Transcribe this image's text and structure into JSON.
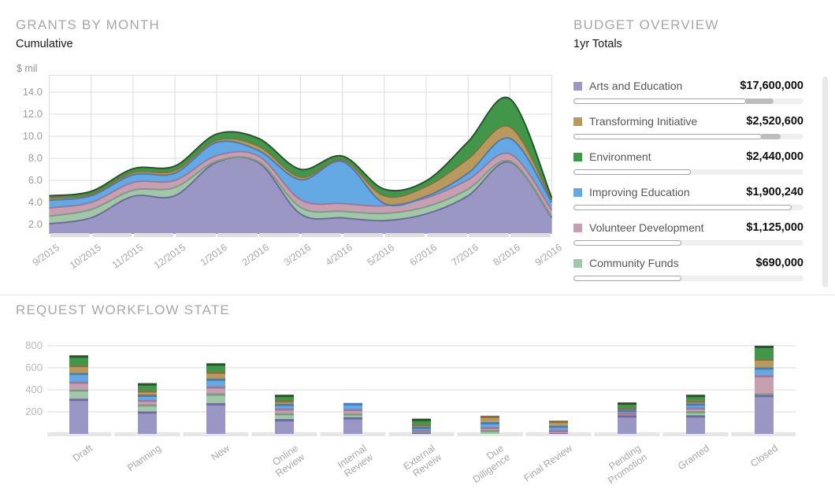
{
  "grants": {
    "title": "GRANTS BY MONTH",
    "subtitle": "Cumulative",
    "y_axis_label": "$ mil"
  },
  "budget": {
    "title": "BUDGET OVERVIEW",
    "subtitle": "1yr Totals",
    "items": [
      {
        "label": "Arts and Education",
        "value": "$17,600,000",
        "color": "#9b97c5",
        "bar_outline_pct": 75,
        "bar_dark_pct": 12
      },
      {
        "label": "Transforming Initiative",
        "value": "$2,520,600",
        "color": "#b9995d",
        "bar_outline_pct": 82,
        "bar_dark_pct": 8
      },
      {
        "label": "Environment",
        "value": "$2,440,000",
        "color": "#42964a",
        "bar_outline_pct": 51,
        "bar_dark_pct": 0
      },
      {
        "label": "Improving Education",
        "value": "$1,900,240",
        "color": "#64a8e4",
        "bar_outline_pct": 95,
        "bar_dark_pct": 0
      },
      {
        "label": "Volunteer Development",
        "value": "$1,125,000",
        "color": "#c69fb0",
        "bar_outline_pct": 47,
        "bar_dark_pct": 0
      },
      {
        "label": "Community Funds",
        "value": "$690,000",
        "color": "#a2c6a9",
        "bar_outline_pct": 47,
        "bar_dark_pct": 0
      }
    ]
  },
  "workflow": {
    "title": "REQUEST WORKFLOW STATE"
  },
  "chart_data": [
    {
      "type": "area",
      "stacked": true,
      "title": "GRANTS BY MONTH",
      "subtitle": "Cumulative",
      "ylabel": "$ mil",
      "grid": true,
      "ylim": [
        0,
        15.5
      ],
      "yticks": [
        2,
        4,
        6,
        8,
        10,
        12,
        14
      ],
      "ytick_labels": [
        "2.0",
        "4.0",
        "6.0",
        "8.0",
        "10.0",
        "12.0",
        "14.0"
      ],
      "x": [
        "9/2015",
        "10/2015",
        "11/2015",
        "12/2015",
        "1/2016",
        "2/2016",
        "3/2016",
        "4/2016",
        "5/2016",
        "6/2016",
        "7/2016",
        "8/2016",
        "9/2016"
      ],
      "series": [
        {
          "name": "Arts and Education",
          "color": "#9b97c5",
          "stroke": "#6e69a5",
          "values": [
            2.05,
            2.6,
            4.55,
            4.6,
            7.65,
            7.6,
            2.95,
            2.6,
            2.35,
            2.95,
            4.6,
            7.65,
            2.6
          ]
        },
        {
          "name": "Community Funds",
          "color": "#a2c6a9",
          "stroke": "#74a181",
          "values": [
            0.7,
            0.75,
            0.55,
            0.75,
            0.1,
            0.1,
            0.6,
            0.6,
            0.65,
            0.65,
            0.6,
            0.1,
            0.1
          ]
        },
        {
          "name": "Volunteer Development",
          "color": "#c69fb0",
          "stroke": "#a87590",
          "values": [
            0.75,
            0.65,
            0.7,
            0.65,
            0.5,
            0.5,
            0.7,
            0.7,
            0.7,
            0.8,
            0.85,
            0.65,
            0.6
          ]
        },
        {
          "name": "Improving Education",
          "color": "#64a8e4",
          "stroke": "#3d7fc1",
          "values": [
            0.7,
            0.6,
            0.7,
            0.65,
            1.2,
            0.5,
            1.8,
            3.8,
            0.2,
            0.15,
            0.6,
            1.4,
            0.7
          ]
        },
        {
          "name": "Transforming Initiative",
          "color": "#b9995d",
          "stroke": "#8a6e3f",
          "values": [
            0.2,
            0.15,
            0.2,
            0.25,
            0.2,
            0.4,
            0.25,
            0.15,
            0.7,
            0.9,
            1.3,
            1.05,
            0.2
          ]
        },
        {
          "name": "Environment",
          "color": "#42964a",
          "stroke": "#1c5b24",
          "values": [
            0.2,
            0.25,
            0.35,
            0.4,
            0.55,
            0.7,
            0.7,
            0.35,
            0.6,
            0.5,
            1.55,
            2.55,
            0.2
          ]
        }
      ]
    },
    {
      "type": "bar",
      "stacked": true,
      "title": "REQUEST WORKFLOW STATE",
      "grid": true,
      "ylim": [
        0,
        850
      ],
      "yticks": [
        200,
        400,
        600,
        800
      ],
      "ytick_labels": [
        "200",
        "400",
        "600",
        "800"
      ],
      "categories": [
        "Draft",
        "Planning",
        "New",
        "Online Review",
        "Internal Review",
        "External Reveiw",
        "Due Dilligence",
        "Final Review",
        "Pending Promotion",
        "Granted",
        "Closed"
      ],
      "series": [
        {
          "name": "Arts and Education",
          "color": "#9b97c5",
          "stroke": "#6e69a5",
          "values": [
            320,
            205,
            280,
            135,
            152,
            12,
            0,
            8,
            170,
            170,
            355
          ]
        },
        {
          "name": "Community Funds",
          "color": "#a2c6a9",
          "stroke": "#74a181",
          "values": [
            85,
            65,
            88,
            55,
            36,
            8,
            38,
            0,
            0,
            37,
            14
          ]
        },
        {
          "name": "Volunteer Development",
          "color": "#c69fb0",
          "stroke": "#a87590",
          "values": [
            70,
            42,
            65,
            42,
            40,
            18,
            28,
            28,
            25,
            35,
            165
          ]
        },
        {
          "name": "Improving Education",
          "color": "#64a8e4",
          "stroke": "#3d7fc1",
          "values": [
            80,
            45,
            70,
            42,
            52,
            28,
            42,
            40,
            25,
            35,
            70
          ]
        },
        {
          "name": "Transforming Initiative",
          "color": "#b9995d",
          "stroke": "#8a6e3f",
          "values": [
            72,
            40,
            64,
            33,
            0,
            24,
            57,
            44,
            16,
            28,
            81
          ]
        },
        {
          "name": "Environment",
          "color": "#42964a",
          "stroke": "#1c5b24",
          "values": [
            85,
            63,
            73,
            48,
            0,
            48,
            0,
            0,
            50,
            50,
            115
          ]
        }
      ]
    }
  ]
}
